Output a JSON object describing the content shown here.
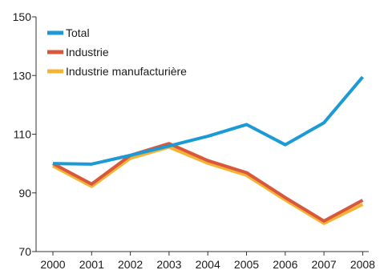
{
  "chart_data": {
    "type": "line",
    "x": [
      2000,
      2001,
      2002,
      2003,
      2004,
      2005,
      2006,
      2007,
      2008
    ],
    "x_tick_labels": [
      "2000",
      "2001",
      "2002",
      "2003",
      "2004",
      "2005",
      "2006",
      "2007",
      "2008"
    ],
    "ylim": [
      70,
      150
    ],
    "y_ticks": [
      70,
      90,
      110,
      130,
      150
    ],
    "y_tick_labels": [
      "70",
      "90",
      "110",
      "130",
      "150"
    ],
    "grid": false,
    "legend_position": "top-left",
    "series": [
      {
        "name": "Total",
        "color": "#1b9ad6",
        "values": [
          100,
          99.8,
          102.8,
          106,
          109.3,
          113.3,
          106.4,
          113.9,
          129.5
        ]
      },
      {
        "name": "Industrie",
        "color": "#d9573a",
        "values": [
          100,
          93,
          102.8,
          106.8,
          101,
          96.9,
          88.4,
          80.4,
          87.5
        ]
      },
      {
        "name": "Industrie manufacturière",
        "color": "#f5b335",
        "values": [
          99.2,
          92.2,
          101.8,
          105.6,
          100.1,
          96,
          87.6,
          79.6,
          86.1
        ]
      }
    ]
  }
}
